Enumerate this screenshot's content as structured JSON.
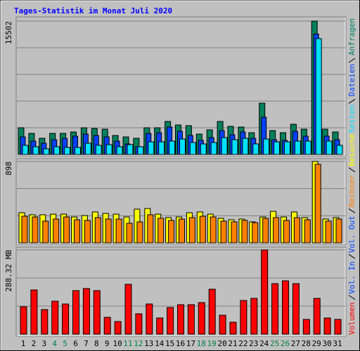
{
  "chart_data": [
    {
      "type": "bar",
      "title": "Tages-Statistik im Monat Juli 2020",
      "categories": [
        "1",
        "2",
        "3",
        "4",
        "5",
        "6",
        "7",
        "8",
        "9",
        "10",
        "11",
        "12",
        "13",
        "14",
        "15",
        "16",
        "17",
        "18",
        "19",
        "20",
        "21",
        "22",
        "23",
        "24",
        "25",
        "26",
        "27",
        "28",
        "29",
        "30",
        "31"
      ],
      "category_colors": [
        "#000000",
        "#000000",
        "#000000",
        "#008040",
        "#008040",
        "#000000",
        "#000000",
        "#000000",
        "#000000",
        "#000000",
        "#008040",
        "#008040",
        "#000000",
        "#000000",
        "#000000",
        "#000000",
        "#000000",
        "#008040",
        "#008040",
        "#000000",
        "#000000",
        "#000000",
        "#000000",
        "#000000",
        "#008040",
        "#008040",
        "#000000",
        "#000000",
        "#000000",
        "#000000",
        "#000000"
      ],
      "series": [
        {
          "name": "Anfragen",
          "color": "#00805c",
          "values": [
            3100,
            2448,
            1877,
            2448,
            2448,
            2611,
            3100,
            3019,
            2937,
            2203,
            2040,
            1877,
            3100,
            3100,
            3835,
            3427,
            3345,
            2366,
            2856,
            3835,
            3264,
            3182,
            2529,
            5956,
            2774,
            2529,
            3508,
            2937,
            15502,
            2937,
            2611
          ]
        },
        {
          "name": "Dateien",
          "color": "#0040ff",
          "values": [
            2040,
            1550,
            1306,
            1714,
            1877,
            2122,
            2366,
            2203,
            2040,
            1550,
            1224,
            898,
            2448,
            2530,
            3182,
            2693,
            2203,
            1632,
            1958,
            2774,
            2285,
            2611,
            1877,
            4325,
            1714,
            1632,
            2693,
            2122,
            14000,
            2122,
            1714
          ]
        },
        {
          "name": "Seiten",
          "color": "#00e0ff",
          "values": [
            1061,
            898,
            653,
            898,
            816,
            816,
            1306,
            1061,
            1142,
            898,
            1142,
            898,
            1469,
            1469,
            1550,
            1795,
            1387,
            1224,
            1387,
            1958,
            1714,
            1877,
            1224,
            1795,
            1469,
            1469,
            1550,
            1550,
            13464,
            1550,
            1061
          ]
        }
      ],
      "ylim": [
        0,
        15502
      ],
      "yticks": [
        15502
      ],
      "grid": true
    },
    {
      "type": "bar",
      "series": [
        {
          "name": "Besuche",
          "color": "#ffff00",
          "values": [
            333,
            310,
            310,
            317,
            317,
            286,
            302,
            341,
            325,
            317,
            286,
            372,
            379,
            317,
            279,
            286,
            333,
            341,
            317,
            271,
            255,
            263,
            232,
            286,
            348,
            286,
            341,
            279,
            898,
            263,
            279
          ]
        },
        {
          "name": "Rechner",
          "color": "#ff8000",
          "values": [
            294,
            286,
            240,
            263,
            286,
            255,
            248,
            279,
            263,
            263,
            217,
            232,
            310,
            271,
            248,
            263,
            279,
            294,
            286,
            240,
            232,
            248,
            224,
            271,
            279,
            248,
            279,
            255,
            867,
            240,
            263
          ]
        }
      ],
      "ylim": [
        0,
        898
      ],
      "yticks": [
        898
      ],
      "grid": true
    },
    {
      "type": "bar",
      "series": [
        {
          "name": "Volumen",
          "color": "#ff0000",
          "values": [
            93.7,
            151.4,
            84.1,
            112.9,
            103.3,
            149.0,
            156.2,
            149.0,
            57.7,
            43.2,
            170.6,
            69.7,
            103.3,
            55.3,
            91.3,
            100.9,
            100.9,
            108.1,
            153.8,
            64.9,
            40.8,
            115.3,
            122.5,
            288.32,
            173.0,
            182.6,
            173.0,
            50.5,
            122.5,
            55.3,
            50.5
          ]
        },
        {
          "name": "Vol. In",
          "color": "#0040ff",
          "values": [
            null,
            null,
            null,
            null,
            null,
            null,
            null,
            null,
            null,
            null,
            null,
            null,
            null,
            null,
            null,
            null,
            null,
            null,
            null,
            null,
            null,
            null,
            null,
            null,
            null,
            null,
            null,
            null,
            null,
            null,
            null
          ]
        },
        {
          "name": "Vol. Out",
          "color": "#0040ff",
          "values": [
            null,
            null,
            null,
            null,
            null,
            null,
            null,
            null,
            null,
            null,
            null,
            null,
            null,
            null,
            null,
            null,
            null,
            null,
            null,
            null,
            null,
            null,
            null,
            null,
            null,
            null,
            null,
            null,
            null,
            null,
            null
          ]
        }
      ],
      "ylim": [
        0,
        288.32
      ],
      "yticks": [
        {
          "value": 288.32,
          "label": "288.32 MB"
        }
      ],
      "grid": true
    }
  ]
}
